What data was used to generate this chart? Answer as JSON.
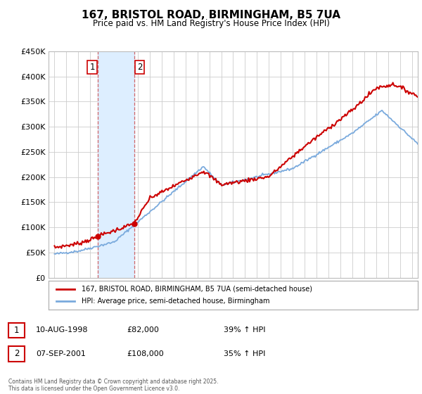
{
  "title": "167, BRISTOL ROAD, BIRMINGHAM, B5 7UA",
  "subtitle": "Price paid vs. HM Land Registry's House Price Index (HPI)",
  "legend_label_red": "167, BRISTOL ROAD, BIRMINGHAM, B5 7UA (semi-detached house)",
  "legend_label_blue": "HPI: Average price, semi-detached house, Birmingham",
  "annotation1_date": "10-AUG-1998",
  "annotation1_price": "£82,000",
  "annotation1_hpi": "39% ↑ HPI",
  "annotation2_date": "07-SEP-2001",
  "annotation2_price": "£108,000",
  "annotation2_hpi": "35% ↑ HPI",
  "footer": "Contains HM Land Registry data © Crown copyright and database right 2025.\nThis data is licensed under the Open Government Licence v3.0.",
  "xlim": [
    1994.5,
    2025.5
  ],
  "ylim": [
    0,
    450000
  ],
  "yticks": [
    0,
    50000,
    100000,
    150000,
    200000,
    250000,
    300000,
    350000,
    400000,
    450000
  ],
  "ytick_labels": [
    "£0",
    "£50K",
    "£100K",
    "£150K",
    "£200K",
    "£250K",
    "£300K",
    "£350K",
    "£400K",
    "£450K"
  ],
  "point1_x": 1998.61,
  "point1_y": 82000,
  "point2_x": 2001.69,
  "point2_y": 108000,
  "red_color": "#cc0000",
  "blue_color": "#7aaadd",
  "shade_color": "#ddeeff",
  "background_color": "#ffffff",
  "grid_color": "#cccccc"
}
